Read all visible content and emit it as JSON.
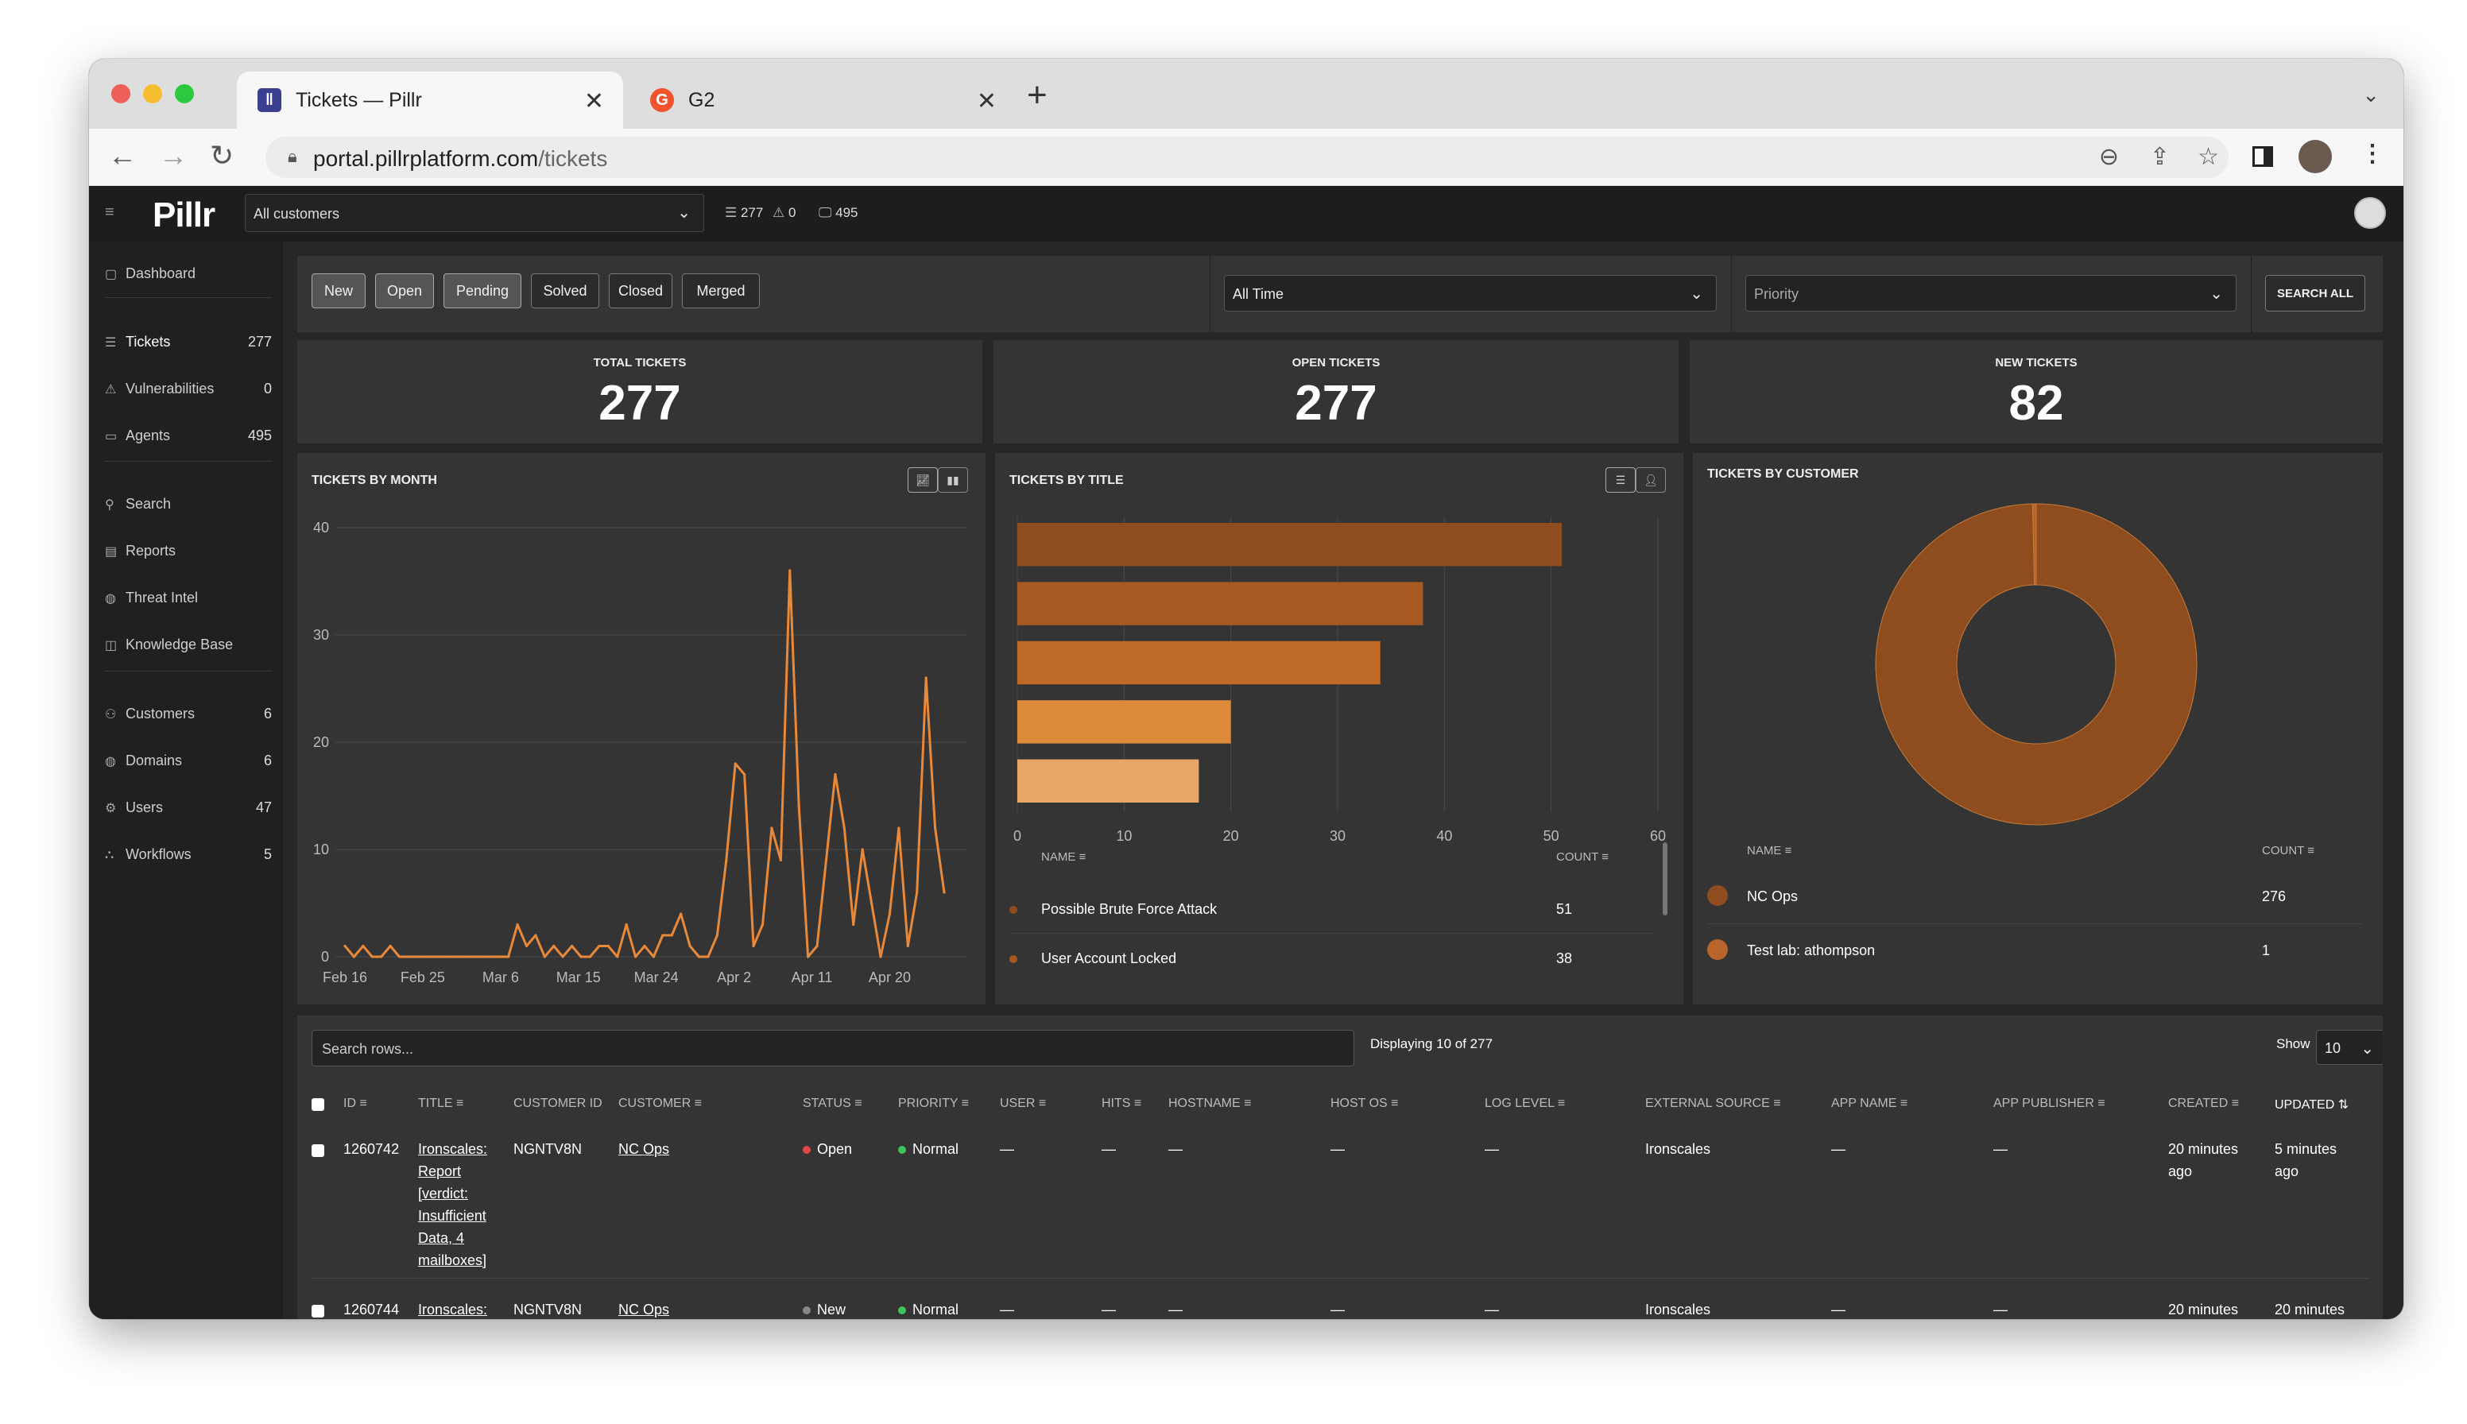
{
  "browser": {
    "tabs": [
      {
        "title": "Tickets — Pillr",
        "active": true
      },
      {
        "title": "G2",
        "active": false
      }
    ],
    "url_host": "portal.pillrplatform.com",
    "url_path": "/tickets"
  },
  "topbar": {
    "logo": "Pillr",
    "customer_select": "All customers",
    "tickets_count": "277",
    "alerts_count": "0",
    "agents_count": "495"
  },
  "sidebar": {
    "items": [
      {
        "label": "Dashboard",
        "count": "",
        "icon": "dashboard-icon"
      },
      {
        "label": "Tickets",
        "count": "277",
        "icon": "list-icon"
      },
      {
        "label": "Vulnerabilities",
        "count": "0",
        "icon": "warning-icon"
      },
      {
        "label": "Agents",
        "count": "495",
        "icon": "monitor-icon"
      },
      {
        "label": "Search",
        "count": "",
        "icon": "search-icon"
      },
      {
        "label": "Reports",
        "count": "",
        "icon": "document-icon"
      },
      {
        "label": "Threat Intel",
        "count": "",
        "icon": "globe-icon"
      },
      {
        "label": "Knowledge Base",
        "count": "",
        "icon": "book-icon"
      },
      {
        "label": "Customers",
        "count": "6",
        "icon": "users-icon"
      },
      {
        "label": "Domains",
        "count": "6",
        "icon": "globe-icon"
      },
      {
        "label": "Users",
        "count": "47",
        "icon": "gear-icon"
      },
      {
        "label": "Workflows",
        "count": "5",
        "icon": "workflow-icon"
      }
    ]
  },
  "filters": {
    "status_buttons": [
      {
        "label": "New",
        "selected": true
      },
      {
        "label": "Open",
        "selected": true
      },
      {
        "label": "Pending",
        "selected": true
      },
      {
        "label": "Solved",
        "selected": false
      },
      {
        "label": "Closed",
        "selected": false
      },
      {
        "label": "Merged",
        "selected": false
      }
    ],
    "time_select": "All Time",
    "priority_placeholder": "Priority",
    "search_all_label": "SEARCH ALL"
  },
  "stats": [
    {
      "label": "TOTAL TICKETS",
      "value": "277"
    },
    {
      "label": "OPEN TICKETS",
      "value": "277"
    },
    {
      "label": "NEW TICKETS",
      "value": "82"
    }
  ],
  "panels": {
    "by_month_title": "TICKETS BY MONTH",
    "by_title_title": "TICKETS BY TITLE",
    "by_customer_title": "TICKETS BY CUSTOMER",
    "name_header": "NAME",
    "count_header": "COUNT"
  },
  "chart_data": [
    {
      "type": "line",
      "title": "TICKETS BY MONTH",
      "x_tick_labels": [
        "Feb 16",
        "Feb 25",
        "Mar 6",
        "Mar 15",
        "Mar 24",
        "Apr 2",
        "Apr 11",
        "Apr 20"
      ],
      "y_ticks": [
        0,
        10,
        20,
        30,
        40
      ],
      "ylim": [
        0,
        40
      ],
      "color": "#e8893a",
      "values": [
        1,
        0,
        1,
        0,
        0,
        1,
        0,
        0,
        0,
        0,
        0,
        0,
        0,
        0,
        0,
        0,
        0,
        0,
        0,
        3,
        1,
        2,
        0,
        1,
        0,
        1,
        0,
        0,
        1,
        1,
        0,
        3,
        0,
        1,
        0,
        2,
        2,
        4,
        1,
        0,
        0,
        2,
        9,
        18,
        17,
        1,
        3,
        12,
        9,
        36,
        14,
        0,
        1,
        9,
        17,
        12,
        3,
        10,
        5,
        0,
        4,
        12,
        1,
        6,
        26,
        12,
        6
      ]
    },
    {
      "type": "bar",
      "orientation": "horizontal",
      "title": "TICKETS BY TITLE",
      "categories": [
        "Possible Brute Force Attack",
        "User Account Locked",
        "",
        "",
        ""
      ],
      "values": [
        51,
        38,
        34,
        20,
        17
      ],
      "colors": [
        "#8f4d1f",
        "#a65a22",
        "#c06a27",
        "#de8a3b",
        "#e8a769"
      ],
      "x_ticks": [
        0,
        10,
        20,
        30,
        40,
        50,
        60
      ],
      "xlim": [
        0,
        60
      ]
    },
    {
      "type": "pie",
      "title": "TICKETS BY CUSTOMER",
      "labels": [
        "NC Ops",
        "Test lab: athompson"
      ],
      "values": [
        276,
        1
      ],
      "colors": [
        "#8f4d1f",
        "#b8642a"
      ]
    }
  ],
  "by_title_list": [
    {
      "name": "Possible Brute Force Attack",
      "count": "51"
    },
    {
      "name": "User Account Locked",
      "count": "38"
    }
  ],
  "by_customer_list": [
    {
      "name": "NC Ops",
      "count": "276"
    },
    {
      "name": "Test lab: athompson",
      "count": "1"
    }
  ],
  "table": {
    "search_placeholder": "Search rows...",
    "displaying": "Displaying 10 of 277",
    "show_label": "Show",
    "show_value": "10",
    "columns": [
      "ID",
      "TITLE",
      "CUSTOMER ID",
      "CUSTOMER",
      "STATUS",
      "PRIORITY",
      "USER",
      "HITS",
      "HOSTNAME",
      "HOST OS",
      "LOG LEVEL",
      "EXTERNAL SOURCE",
      "APP NAME",
      "APP PUBLISHER",
      "CREATED",
      "UPDATED"
    ],
    "rows": [
      {
        "id": "1260742",
        "title": [
          "Ironscales:",
          "Report",
          "[verdict:",
          "Insufficient",
          "Data, 4",
          "mailboxes]"
        ],
        "customer_id": "NGNTV8N",
        "customer": "NC Ops",
        "status": "Open",
        "status_color": "#e04848",
        "priority": "Normal",
        "priority_color": "#3ec35a",
        "user": "—",
        "hits": "—",
        "hostname": "—",
        "host_os": "—",
        "log_level": "—",
        "external_source": "Ironscales",
        "app_name": "—",
        "app_publisher": "—",
        "created": [
          "20 minutes",
          "ago"
        ],
        "updated": [
          "5 minutes",
          "ago"
        ]
      },
      {
        "id": "1260744",
        "title": [
          "Ironscales:"
        ],
        "customer_id": "NGNTV8N",
        "customer": "NC Ops",
        "status": "New",
        "status_color": "#888888",
        "priority": "Normal",
        "priority_color": "#3ec35a",
        "user": "—",
        "hits": "—",
        "hostname": "—",
        "host_os": "—",
        "log_level": "—",
        "external_source": "Ironscales",
        "app_name": "—",
        "app_publisher": "—",
        "created": [
          "20 minutes"
        ],
        "updated": [
          "20 minutes"
        ]
      }
    ]
  }
}
